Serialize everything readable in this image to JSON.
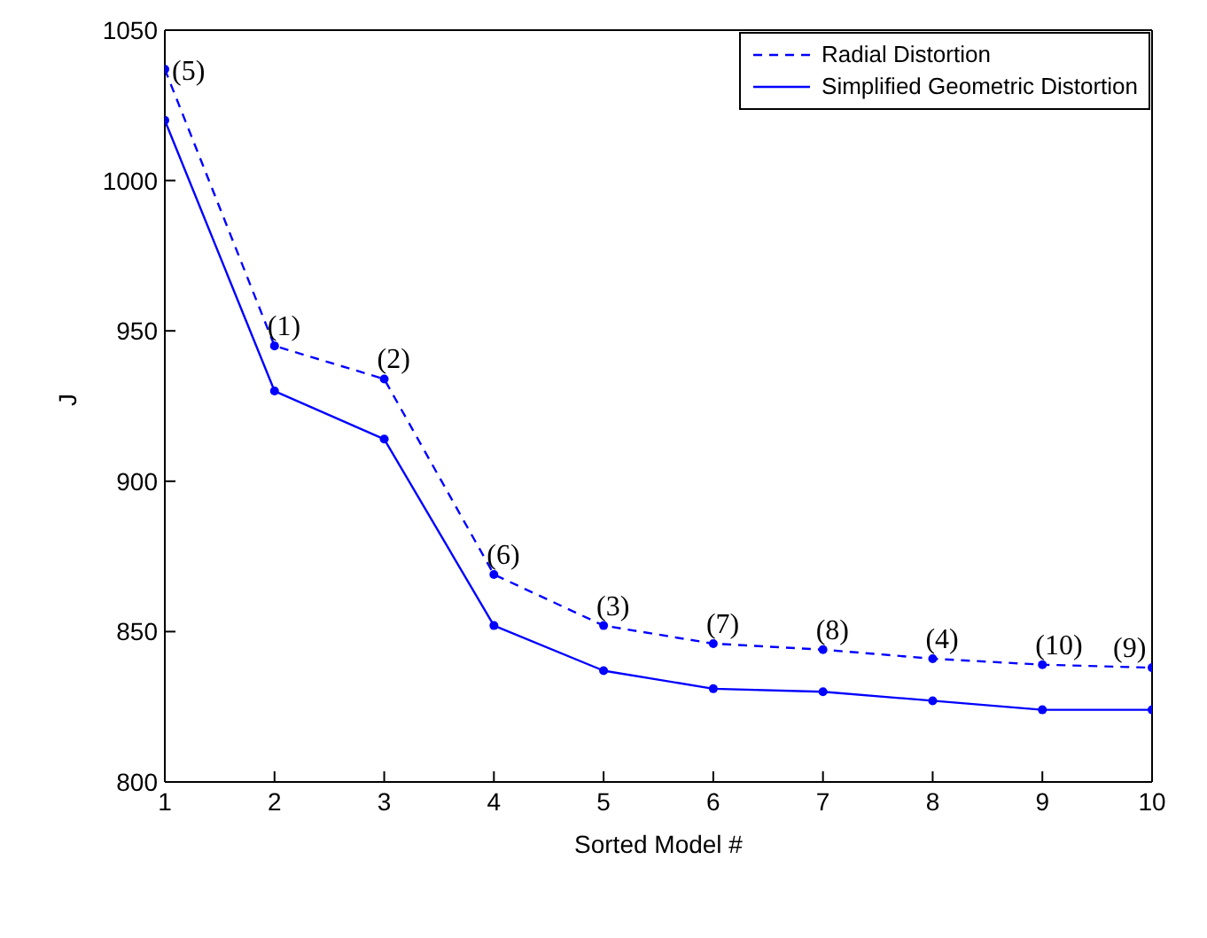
{
  "chart_data": {
    "type": "line",
    "xlabel": "Sorted Model #",
    "ylabel": "J",
    "x": [
      1,
      2,
      3,
      4,
      5,
      6,
      7,
      8,
      9,
      10
    ],
    "series": [
      {
        "name": "Radial Distortion",
        "color": "#0000ff",
        "line_style": "dashed",
        "values": [
          1037,
          945,
          934,
          869,
          852,
          846,
          844,
          841,
          839,
          838
        ]
      },
      {
        "name": "Simplified Geometric Distortion",
        "color": "#0000ff",
        "line_style": "solid",
        "values": [
          1020,
          930,
          914,
          852,
          837,
          831,
          830,
          827,
          824,
          824
        ]
      }
    ],
    "xlim": [
      1,
      10
    ],
    "xticks": [
      1,
      2,
      3,
      4,
      5,
      6,
      7,
      8,
      9,
      10
    ],
    "ylim": [
      800,
      1050
    ],
    "yticks": [
      800,
      850,
      900,
      950,
      1000,
      1050
    ],
    "grid": false,
    "legend": "top right",
    "marker": "circle",
    "annotations": [
      {
        "text": "(5)",
        "x": 1,
        "y": 1037
      },
      {
        "text": "(1)",
        "x": 2,
        "y": 945
      },
      {
        "text": "(2)",
        "x": 3,
        "y": 934
      },
      {
        "text": "(6)",
        "x": 4,
        "y": 869
      },
      {
        "text": "(3)",
        "x": 5,
        "y": 852
      },
      {
        "text": "(7)",
        "x": 6,
        "y": 846
      },
      {
        "text": "(8)",
        "x": 7,
        "y": 844
      },
      {
        "text": "(4)",
        "x": 8,
        "y": 841
      },
      {
        "text": "(10)",
        "x": 9,
        "y": 839
      },
      {
        "text": "(9)",
        "x": 10,
        "y": 838
      }
    ]
  }
}
